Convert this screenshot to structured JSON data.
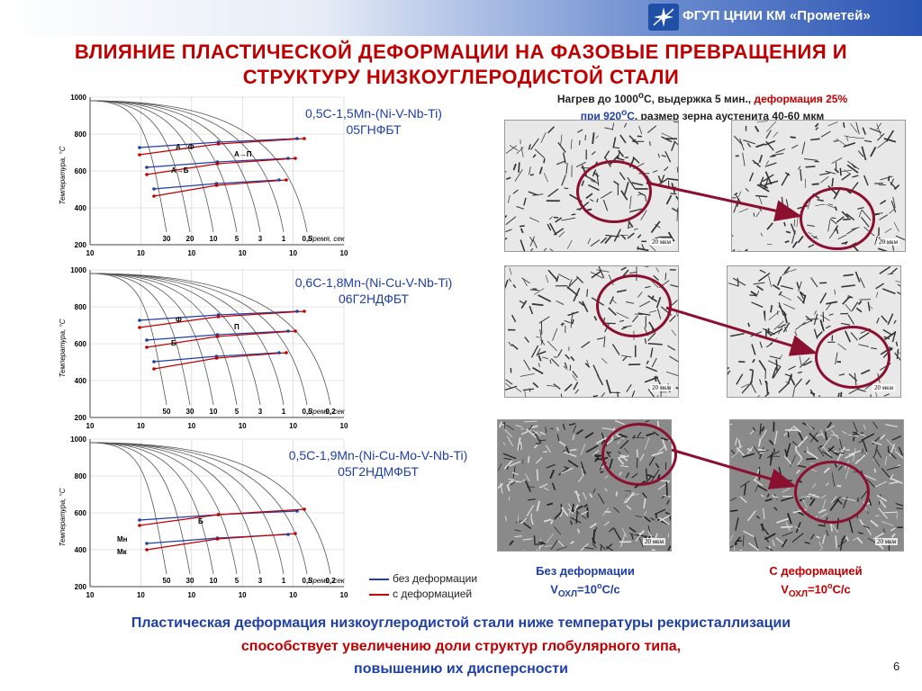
{
  "header": {
    "org": "ФГУП ЦНИИ КМ «Прометей»"
  },
  "title": {
    "line1": "ВЛИЯНИЕ ПЛАСТИЧЕСКОЙ ДЕФОРМАЦИИ НА ФАЗОВЫЕ ПРЕВРАЩЕНИЯ И",
    "line2": "СТРУКТУРУ НИЗКОУГЛЕРОДИСТОЙ СТАЛИ"
  },
  "conditions": {
    "p1": "Нагрев до 1000",
    "sup1": "o",
    "p2": "С, выдержка 5 мин., ",
    "p3": "деформация 25%",
    "p4": "при 920",
    "sup2": "o",
    "p5": "С",
    "p6": ", размер зерна аустенита 40-60 мкм"
  },
  "charts": [
    {
      "alloy": "0,5C-1,5Mn-(Ni-V-Nb-Ti)",
      "grade": "05ГНФБТ",
      "y_ticks": [
        "1000",
        "800",
        "600",
        "400",
        "200"
      ],
      "x_ticks": [
        "10",
        "10",
        "10",
        "10",
        "10",
        "10"
      ],
      "ylabel": "Температура, °С",
      "xlabel": "Время, сек",
      "rates": [
        "30",
        "20",
        "10",
        "5",
        "3",
        "1",
        "0,5"
      ],
      "regions": [
        "А→Ф",
        "А→П",
        "А→Б"
      ]
    },
    {
      "alloy": "0,6C-1,8Mn-(Ni-Cu-V-Nb-Ti)",
      "grade": "06Г2НДФБТ",
      "y_ticks": [
        "1000",
        "800",
        "600",
        "400",
        "200"
      ],
      "x_ticks": [
        "10",
        "10",
        "10",
        "10",
        "10",
        "10"
      ],
      "ylabel": "Температура, °С",
      "xlabel": "Время, сек",
      "rates": [
        "50",
        "30",
        "10",
        "5",
        "3",
        "1",
        "0,5",
        "0,2"
      ],
      "regions": [
        "Ф",
        "П",
        "Б"
      ]
    },
    {
      "alloy": "0,5C-1,9Mn-(Ni-Cu-Mo-V-Nb-Ti)",
      "grade": "05Г2НДМФБТ",
      "y_ticks": [
        "1000",
        "800",
        "600",
        "400",
        "200"
      ],
      "x_ticks": [
        "10",
        "10",
        "10",
        "10",
        "10",
        "10"
      ],
      "ylabel": "Температура, °С",
      "xlabel": "Время, сек",
      "rates": [
        "50",
        "30",
        "10",
        "5",
        "3",
        "1",
        "0,5",
        "0,2"
      ],
      "regions": [
        "Б",
        "Мн",
        "Мк"
      ]
    }
  ],
  "legend": {
    "no_def": "без деформации",
    "with_def": "с деформацией",
    "blue": "#1f3fa8",
    "red": "#c00000"
  },
  "micrographs": {
    "scale": "20 мкм"
  },
  "captions": {
    "left_title": "Без деформации",
    "left_v": "V",
    "left_sub": "ОХЛ",
    "left_val": "=10",
    "left_sup": "o",
    "left_unit": "С/с",
    "right_title": "С деформацией",
    "right_v": "V",
    "right_sub": "ОХЛ",
    "right_val": "=10",
    "right_sup": "o",
    "right_unit": "С/с"
  },
  "conclusion": {
    "line1": "Пластическая деформация низкоуглеродистой стали ниже температуры рекристаллизации",
    "line2": "способствует увеличению доли структур глобулярного типа,",
    "line3": "повышению их дисперсности"
  },
  "page_number": "6"
}
